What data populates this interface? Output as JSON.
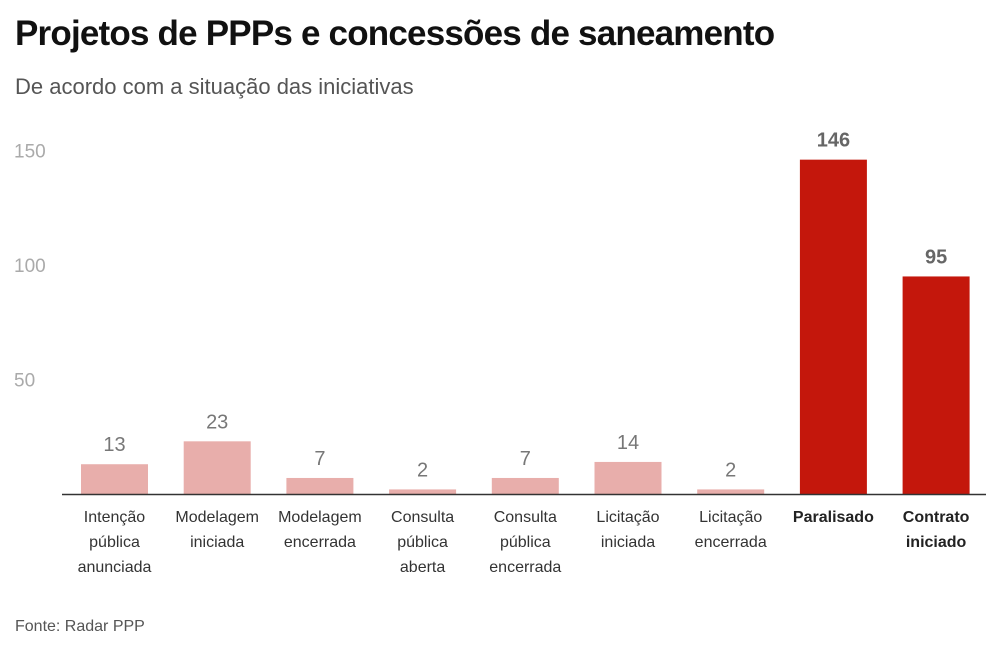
{
  "header": {
    "title": "Projetos de PPPs e concessões de saneamento",
    "subtitle": "De acordo com a situação das iniciativas"
  },
  "footer": {
    "source": "Fonte: Radar PPP"
  },
  "colors": {
    "normal": "#e8aeab",
    "highlight": "#c4170c",
    "axis": "#333333"
  },
  "chart_data": {
    "type": "bar",
    "title": "Projetos de PPPs e concessões de saneamento",
    "subtitle": "De acordo com a situação das iniciativas",
    "xlabel": "",
    "ylabel": "",
    "ylim": [
      0,
      150
    ],
    "yticks": [
      50,
      100,
      150
    ],
    "grid": false,
    "categories": [
      [
        "Intenção",
        "pública",
        "anunciada"
      ],
      [
        "Modelagem",
        "iniciada"
      ],
      [
        "Modelagem",
        "encerrada"
      ],
      [
        "Consulta",
        "pública",
        "aberta"
      ],
      [
        "Consulta",
        "pública",
        "encerrada"
      ],
      [
        "Licitação",
        "iniciada"
      ],
      [
        "Licitação",
        "encerrada"
      ],
      [
        "Paralisado"
      ],
      [
        "Contrato",
        "iniciado"
      ]
    ],
    "values": [
      13,
      23,
      7,
      2,
      7,
      14,
      2,
      146,
      95
    ],
    "highlighted": [
      false,
      false,
      false,
      false,
      false,
      false,
      false,
      true,
      true
    ]
  }
}
